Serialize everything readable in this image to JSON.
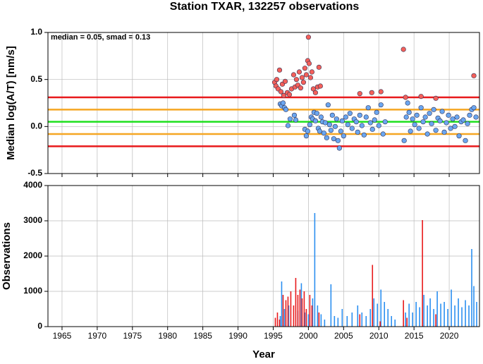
{
  "chart_data": [
    {
      "type": "scatter",
      "title": "Station TXAR, 132257 observations",
      "ylabel": "Median log(A/T) [nm/s]",
      "annotation": "median = 0.05, smad = 0.13",
      "xlim": [
        1963,
        2024.3
      ],
      "xticks": [
        1965,
        1970,
        1975,
        1980,
        1985,
        1990,
        1995,
        2000,
        2005,
        2010,
        2015,
        2020
      ],
      "ylim": [
        -0.5,
        1.0
      ],
      "yticks": [
        {
          "value": -0.5,
          "label": "-0.5"
        },
        {
          "value": 0,
          "label": "0.0"
        },
        0.5,
        {
          "value": 1,
          "label": "1.0"
        }
      ],
      "grid": true,
      "lines": [
        {
          "value": 0.31,
          "color": "#e8191b"
        },
        {
          "value": 0.18,
          "color": "#f5a623"
        },
        {
          "value": 0.05,
          "color": "#1de01d"
        },
        {
          "value": -0.08,
          "color": "#f5a623"
        },
        {
          "value": -0.21,
          "color": "#e8191b"
        }
      ],
      "series": [
        {
          "color": "#f4605a",
          "x": [
            1995.2,
            1995.4,
            1995.5,
            1995.7,
            1995.9,
            1996.1,
            1996.3,
            1996.5,
            1996.7,
            1997.0,
            1997.3,
            1997.6,
            1997.9,
            1998.1,
            1998.3,
            1998.5,
            1998.7,
            1998.9,
            1999.1,
            1999.3,
            1999.5,
            1999.7,
            1999.9,
            2000.0,
            2000.1,
            2000.3,
            2000.5,
            2000.7,
            2001.0,
            2001.3,
            2001.5,
            2001.7,
            2007.3,
            2009.0,
            2010.3,
            2013.5,
            2013.8,
            2016.0,
            2018.1,
            2023.5
          ],
          "values": [
            0.47,
            0.43,
            0.5,
            0.4,
            0.6,
            0.37,
            0.45,
            0.33,
            0.48,
            0.36,
            0.34,
            0.4,
            0.55,
            0.42,
            0.5,
            0.44,
            0.58,
            0.41,
            0.52,
            0.47,
            0.62,
            0.55,
            0.7,
            0.95,
            0.67,
            0.52,
            0.58,
            0.4,
            0.36,
            0.42,
            0.63,
            0.43,
            0.35,
            0.36,
            0.37,
            0.82,
            0.31,
            0.32,
            0.3,
            0.54
          ]
        },
        {
          "color": "#6aa6f0",
          "x": [
            1996.0,
            1996.2,
            1996.4,
            1996.6,
            1996.8,
            1997.1,
            1997.4,
            1998.0,
            1998.2,
            1999.5,
            1999.7,
            1999.9,
            2000.2,
            2000.4,
            2000.6,
            2000.8,
            2001.0,
            2001.2,
            2001.4,
            2001.6,
            2001.8,
            2002.0,
            2002.2,
            2002.4,
            2002.6,
            2002.8,
            2003.0,
            2003.2,
            2003.4,
            2003.6,
            2003.8,
            2004.0,
            2004.2,
            2004.4,
            2004.6,
            2004.8,
            2005.0,
            2005.3,
            2005.6,
            2005.9,
            2006.2,
            2006.5,
            2006.8,
            2007.0,
            2007.3,
            2007.6,
            2007.9,
            2008.2,
            2008.5,
            2008.8,
            2009.1,
            2009.4,
            2009.7,
            2010.0,
            2010.3,
            2010.6,
            2010.9,
            2013.6,
            2013.9,
            2014.1,
            2014.3,
            2014.5,
            2014.8,
            2015.1,
            2015.4,
            2015.7,
            2016.0,
            2016.3,
            2016.6,
            2016.9,
            2017.2,
            2017.5,
            2017.8,
            2018.1,
            2018.4,
            2018.7,
            2019.0,
            2019.3,
            2019.6,
            2019.9,
            2020.2,
            2020.5,
            2020.8,
            2021.1,
            2021.4,
            2021.7,
            2022.0,
            2022.3,
            2022.6,
            2022.9,
            2023.2,
            2023.5,
            2023.8
          ],
          "values": [
            0.24,
            0.22,
            0.25,
            0.2,
            0.18,
            0.01,
            0.08,
            0.12,
            0.07,
            -0.03,
            -0.1,
            -0.05,
            0.02,
            0.1,
            0.08,
            0.15,
            0.06,
            0.14,
            -0.02,
            -0.05,
            0.1,
            0.05,
            -0.07,
            0.04,
            -0.12,
            0.23,
            0.02,
            -0.04,
            0.12,
            -0.13,
            0,
            0.08,
            -0.15,
            -0.23,
            -0.05,
            0.06,
            -0.1,
            0.1,
            0.02,
            0.14,
            -0.02,
            0.08,
            0.05,
            -0.06,
            0.12,
            0.01,
            -0.09,
            0.1,
            0.2,
            0.04,
            -0.03,
            0.07,
            0.15,
            0.01,
            0.23,
            -0.08,
            0.05,
            -0.15,
            0.1,
            0.25,
            0.15,
            -0.05,
            0.08,
            0.02,
            0.12,
            -0.02,
            0.2,
            0.05,
            0.1,
            -0.08,
            0.14,
            0.03,
            0.18,
            -0.04,
            0.09,
            0.06,
            0.16,
            -0.06,
            0.04,
            0.12,
            -0.02,
            0.08,
            0,
            0.1,
            -0.1,
            0.05,
            0.07,
            -0.15,
            0.03,
            0.12,
            0.18,
            0.2,
            0.1
          ]
        }
      ]
    },
    {
      "type": "bar",
      "ylabel": "Observations",
      "xlabel": "Year",
      "xlim": [
        1963,
        2024.3
      ],
      "xticks": [
        1965,
        1970,
        1975,
        1980,
        1985,
        1990,
        1995,
        2000,
        2005,
        2010,
        2015,
        2020
      ],
      "ylim": [
        0,
        4000
      ],
      "yticks": [
        0,
        1000,
        2000,
        3000,
        4000
      ],
      "grid": true,
      "series": [
        {
          "color": "#2b8ff0",
          "x": [
            1996.0,
            1996.2,
            1996.6,
            1997.2,
            1998.5,
            1999.0,
            1999.5,
            2000.0,
            2000.6,
            2000.9,
            2001.3,
            2001.8,
            2002.3,
            2003.2,
            2003.7,
            2004.2,
            2004.8,
            2005.5,
            2006.2,
            2007.0,
            2007.6,
            2008.2,
            2008.8,
            2009.3,
            2009.8,
            2010.3,
            2010.8,
            2011.3,
            2011.8,
            2012.3,
            2013.8,
            2014.3,
            2014.8,
            2015.3,
            2015.8,
            2016.4,
            2016.9,
            2017.3,
            2017.8,
            2018.3,
            2018.8,
            2019.3,
            2019.8,
            2020.3,
            2020.8,
            2021.3,
            2021.8,
            2022.3,
            2022.8,
            2023.2,
            2023.5,
            2023.9
          ],
          "values": [
            300,
            1280,
            500,
            600,
            450,
            1230,
            400,
            350,
            800,
            3220,
            600,
            350,
            200,
            1200,
            300,
            250,
            500,
            300,
            400,
            600,
            400,
            300,
            500,
            800,
            650,
            1050,
            700,
            500,
            300,
            200,
            400,
            650,
            400,
            700,
            550,
            900,
            600,
            800,
            500,
            1000,
            650,
            700,
            500,
            1050,
            600,
            800,
            550,
            750,
            600,
            2200,
            1150,
            700
          ]
        },
        {
          "color": "#e8191b",
          "x": [
            1995.3,
            1995.6,
            1995.9,
            1996.4,
            1996.8,
            1997.1,
            1997.5,
            1997.9,
            1998.2,
            1998.5,
            1998.8,
            1999.1,
            1999.4,
            1999.7,
            2000.2,
            2000.5,
            2001.5,
            2007.3,
            2009.1,
            2010.2,
            2013.5,
            2014.0,
            2016.2,
            2018.1
          ],
          "values": [
            250,
            400,
            200,
            900,
            750,
            850,
            1000,
            600,
            1380,
            900,
            1050,
            800,
            1000,
            500,
            900,
            600,
            400,
            350,
            1750,
            150,
            750,
            250,
            3020,
            350
          ]
        }
      ]
    }
  ]
}
